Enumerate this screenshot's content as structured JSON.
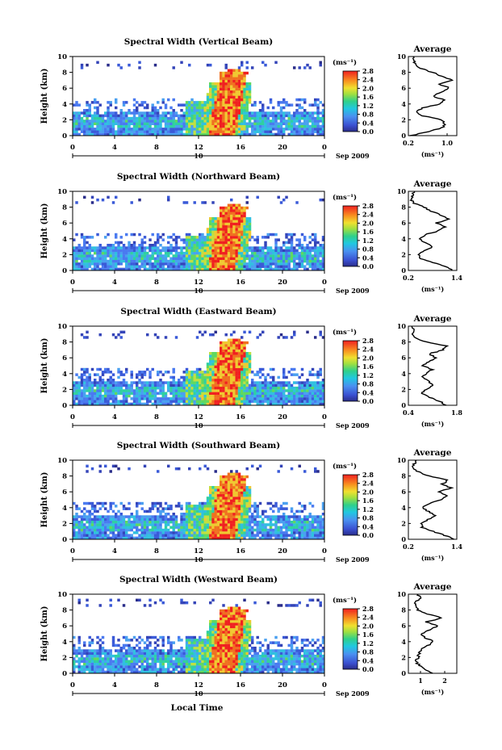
{
  "figure": {
    "xlabel": "Local Time",
    "month_label": "Sep 2009",
    "date_label": "10",
    "x_ticks": [
      "0",
      "4",
      "8",
      "12",
      "16",
      "20",
      "0"
    ],
    "y_ticks": [
      "0",
      "2",
      "4",
      "6",
      "8",
      "10"
    ],
    "ylabel": "Height (km)",
    "unit_label": "(ms⁻¹)",
    "colorbar_ticks": [
      "0.0",
      "0.4",
      "0.8",
      "1.2",
      "1.6",
      "2.0",
      "2.4",
      "2.8"
    ],
    "profile_title": "Average",
    "profile_unit": "(ms⁻¹)"
  },
  "chart_data": [
    {
      "type": "heatmap",
      "title": "Spectral Width (Vertical Beam)",
      "xlabel": "",
      "ylabel": "Height (km)",
      "xlim": [
        0,
        24
      ],
      "ylim": [
        0,
        10
      ],
      "colorbar": {
        "label": "(ms⁻¹)",
        "range": [
          0.0,
          2.8
        ]
      },
      "profile": {
        "title": "Average",
        "xlim": [
          0.2,
          1.2
        ],
        "xticks": [
          "0.2",
          "1.0"
        ],
        "height": [
          0,
          0.5,
          1,
          1.5,
          2,
          2.5,
          3,
          3.5,
          4,
          4.5,
          5,
          5.5,
          6,
          6.5,
          7,
          7.5,
          8,
          8.5,
          9,
          9.5,
          10
        ],
        "width": [
          0.25,
          0.6,
          0.9,
          0.95,
          0.9,
          0.5,
          0.35,
          0.5,
          0.85,
          0.95,
          0.7,
          0.9,
          1.05,
          0.85,
          1.1,
          0.9,
          0.7,
          0.45,
          0.35,
          0.3,
          0.3
        ]
      }
    },
    {
      "type": "heatmap",
      "title": "Spectral Width (Northward Beam)",
      "xlabel": "",
      "ylabel": "Height (km)",
      "xlim": [
        0,
        24
      ],
      "ylim": [
        0,
        10
      ],
      "colorbar": {
        "label": "(ms⁻¹)",
        "range": [
          0.0,
          2.8
        ]
      },
      "profile": {
        "title": "Average",
        "xlim": [
          0.2,
          1.4
        ],
        "xticks": [
          "0.2",
          "1.4"
        ],
        "height": [
          0,
          0.5,
          1,
          1.5,
          2,
          2.5,
          3,
          3.5,
          4,
          4.5,
          5,
          5.5,
          6,
          6.5,
          7,
          7.5,
          8,
          8.5,
          9,
          9.5,
          10
        ],
        "width": [
          1.3,
          1.1,
          0.8,
          0.5,
          0.45,
          0.6,
          0.8,
          0.6,
          0.5,
          0.6,
          0.95,
          1.1,
          0.9,
          1.2,
          1.0,
          0.75,
          0.6,
          0.35,
          0.25,
          0.3,
          0.35
        ]
      }
    },
    {
      "type": "heatmap",
      "title": "Spectral Width (Eastward Beam)",
      "xlabel": "",
      "ylabel": "Height (km)",
      "xlim": [
        0,
        24
      ],
      "ylim": [
        0,
        10
      ],
      "colorbar": {
        "label": "(ms⁻¹)",
        "range": [
          0.0,
          2.8
        ]
      },
      "profile": {
        "title": "Average",
        "xlim": [
          0.4,
          1.8
        ],
        "xticks": [
          "0.4",
          "1.8"
        ],
        "height": [
          0,
          0.5,
          1,
          1.5,
          2,
          2.5,
          3,
          3.5,
          4,
          4.5,
          5,
          5.5,
          6,
          6.5,
          7,
          7.5,
          8,
          8.5,
          9,
          9.5,
          10
        ],
        "width": [
          1.5,
          1.3,
          1.0,
          0.8,
          0.9,
          1.1,
          1.0,
          0.8,
          0.9,
          1.1,
          0.8,
          1.0,
          1.2,
          1.0,
          1.4,
          1.5,
          0.9,
          0.6,
          0.5,
          0.55,
          0.5
        ]
      }
    },
    {
      "type": "heatmap",
      "title": "Spectral Width (Southward Beam)",
      "xlabel": "",
      "ylabel": "Height (km)",
      "xlim": [
        0,
        24
      ],
      "ylim": [
        0,
        10
      ],
      "colorbar": {
        "label": "(ms⁻¹)",
        "range": [
          0.0,
          2.8
        ]
      },
      "profile": {
        "title": "Average",
        "xlim": [
          0.2,
          1.4
        ],
        "xticks": [
          "0.2",
          "1.4"
        ],
        "height": [
          0,
          0.5,
          1,
          1.5,
          2,
          2.5,
          3,
          3.5,
          4,
          4.5,
          5,
          5.5,
          6,
          6.5,
          7,
          7.5,
          8,
          8.5,
          9,
          9.5,
          10
        ],
        "width": [
          1.35,
          1.1,
          0.8,
          0.55,
          0.5,
          0.7,
          0.85,
          0.7,
          0.55,
          0.7,
          1.0,
          1.15,
          0.95,
          1.25,
          1.05,
          1.2,
          0.7,
          0.45,
          0.3,
          0.35,
          0.4
        ]
      }
    },
    {
      "type": "heatmap",
      "title": "Spectral Width (Westward Beam)",
      "xlabel": "Local Time",
      "ylabel": "Height (km)",
      "xlim": [
        0,
        24
      ],
      "ylim": [
        0,
        10
      ],
      "colorbar": {
        "label": "(ms⁻¹)",
        "range": [
          0.0,
          2.8
        ]
      },
      "profile": {
        "title": "Average",
        "xlim": [
          0.5,
          2.5
        ],
        "xticks": [
          "1",
          "2"
        ],
        "height": [
          0,
          0.5,
          1,
          1.5,
          2,
          2.5,
          3,
          3.5,
          4,
          4.5,
          5,
          5.5,
          6,
          6.5,
          7,
          7.5,
          8,
          8.5,
          9,
          9.5,
          10
        ],
        "width": [
          1.5,
          1.2,
          0.95,
          0.8,
          0.9,
          0.95,
          1.0,
          1.3,
          1.55,
          1.2,
          1.0,
          1.4,
          1.7,
          1.2,
          1.9,
          1.3,
          0.9,
          0.8,
          0.8,
          1.0,
          0.9
        ]
      }
    }
  ]
}
